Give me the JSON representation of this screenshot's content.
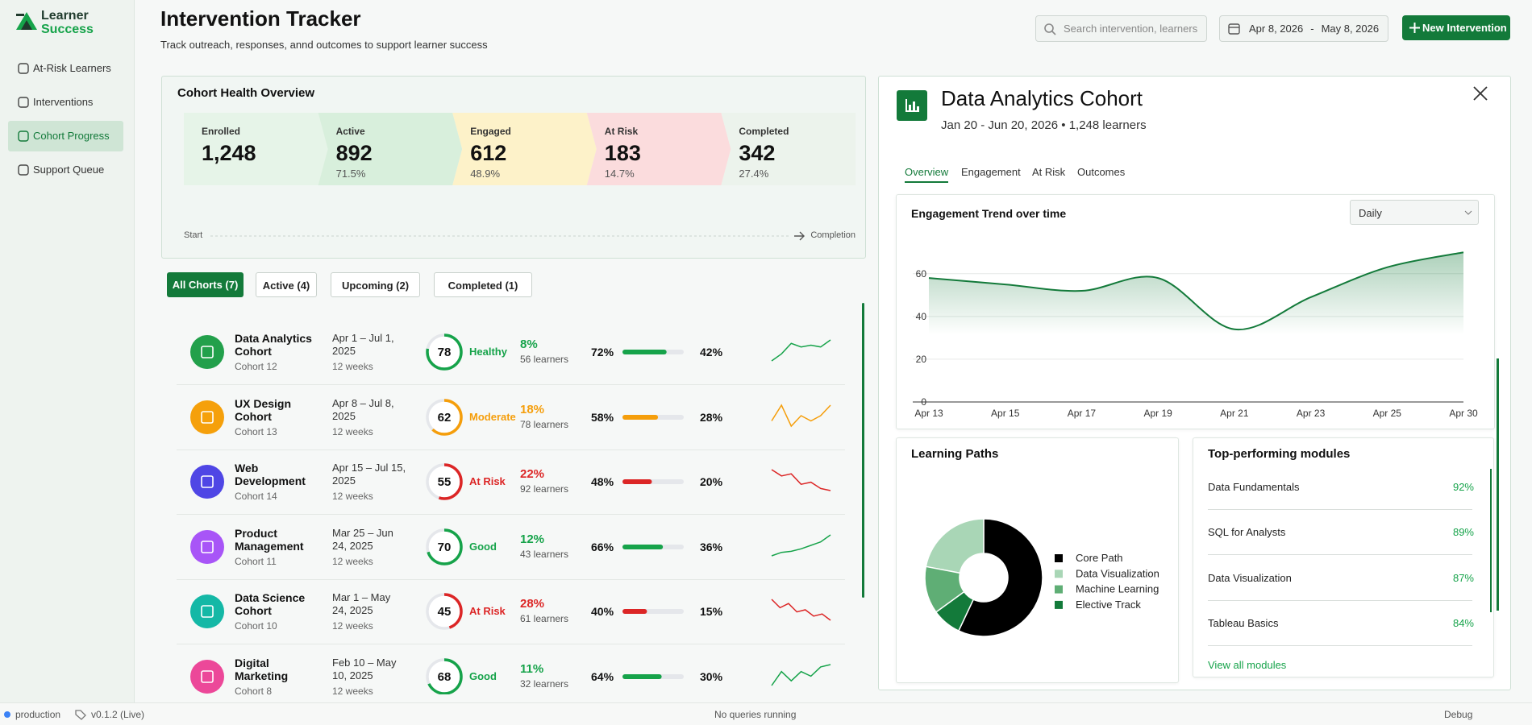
{
  "brand": {
    "line1": "Learner",
    "line2": "Success"
  },
  "nav": [
    {
      "label": "At-Risk Learners",
      "active": false
    },
    {
      "label": "Interventions",
      "active": false
    },
    {
      "label": "Cohort Progress",
      "active": true
    },
    {
      "label": "Support Queue",
      "active": false
    }
  ],
  "header": {
    "title": "Intervention Tracker",
    "subtitle": "Track outreach, responses, annd outcomes to support learner success",
    "search_placeholder": "Search intervention, learners",
    "date_start": "Apr 8, 2026",
    "date_separator": "-",
    "date_end": "May 8, 2026",
    "button": "New Intervention"
  },
  "overview": {
    "title": "Cohort Health Overview",
    "stages": [
      {
        "label": "Enrolled",
        "value": "1,248",
        "note": "",
        "color": "#e6f4e8"
      },
      {
        "label": "Active",
        "value": "892",
        "note": "71.5%",
        "color": "#d8efdc"
      },
      {
        "label": "Engaged",
        "value": "612",
        "note": "48.9%",
        "color": "#fdf2c9"
      },
      {
        "label": "At Risk",
        "value": "183",
        "note": "14.7%",
        "color": "#fbdcdd"
      },
      {
        "label": "Completed",
        "value": "342",
        "note": "27.4%",
        "color": "#ecf3ec"
      }
    ],
    "start": "Start",
    "end": "Completion"
  },
  "filters": [
    {
      "label": "All Chorts (7)",
      "active": true
    },
    {
      "label": "Active (4)",
      "active": false
    },
    {
      "label": "Upcoming (2)",
      "active": false
    },
    {
      "label": "Completed (1)",
      "active": false
    }
  ],
  "cohorts": [
    {
      "name": "Data Analytics Cohort",
      "id": "Cohort 12",
      "dates": "Apr 1 – Jul 1, 2025",
      "duration": "12 weeks",
      "icon_color": "#22a04b",
      "score": 78,
      "status": "Healthy",
      "status_color": "#16a34a",
      "change": "8%",
      "learners": "56 learners",
      "progress": 72,
      "progress_label": "72%",
      "completion": "42%",
      "trend": [
        2,
        4,
        7,
        6,
        6.5,
        6,
        8
      ]
    },
    {
      "name": "UX Design Cohort",
      "id": "Cohort 13",
      "dates": "Apr 8 – Jul 8, 2025",
      "duration": "12 weeks",
      "icon_color": "#f5a00b",
      "score": 62,
      "status": "Moderate",
      "status_color": "#f59e0b",
      "change": "18%",
      "learners": "78 learners",
      "progress": 58,
      "progress_label": "58%",
      "completion": "28%",
      "trend": [
        4,
        7,
        3,
        5,
        4,
        5,
        7
      ]
    },
    {
      "name": "Web Development",
      "id": "Cohort 14",
      "dates": "Apr 15 – Jul 15, 2025",
      "duration": "12 weeks",
      "icon_color": "#4f46e5",
      "score": 55,
      "status": "At Risk",
      "status_color": "#dc2626",
      "change": "22%",
      "learners": "92 learners",
      "progress": 48,
      "progress_label": "48%",
      "completion": "20%",
      "trend": [
        8,
        6.5,
        7,
        4.5,
        5,
        3.5,
        3
      ]
    },
    {
      "name": "Product Management",
      "id": "Cohort 11",
      "dates": "Mar 25 – Jun 24, 2025",
      "duration": "12 weeks",
      "icon_color": "#a855f7",
      "score": 70,
      "status": "Good",
      "status_color": "#16a34a",
      "change": "12%",
      "learners": "43 learners",
      "progress": 66,
      "progress_label": "66%",
      "completion": "36%",
      "trend": [
        3,
        4,
        4.3,
        5,
        6,
        7,
        9
      ]
    },
    {
      "name": "Data Science Cohort",
      "id": "Cohort 10",
      "dates": "Mar 1 – May 24, 2025",
      "duration": "12 weeks",
      "icon_color": "#14b8a6",
      "score": 45,
      "status": "At Risk",
      "status_color": "#dc2626",
      "change": "28%",
      "learners": "61 learners",
      "progress": 40,
      "progress_label": "40%",
      "completion": "15%",
      "trend": [
        8,
        6,
        7,
        5,
        5.5,
        4,
        4.5,
        3
      ]
    },
    {
      "name": "Digital Marketing",
      "id": "Cohort 8",
      "dates": "Feb 10 – May 10, 2025",
      "duration": "12 weeks",
      "icon_color": "#ec4899",
      "score": 68,
      "status": "Good",
      "status_color": "#16a34a",
      "change": "11%",
      "learners": "32 learners",
      "progress": 64,
      "progress_label": "64%",
      "completion": "30%",
      "trend": [
        3,
        6,
        4,
        6,
        5,
        7,
        7.5
      ]
    }
  ],
  "detail": {
    "title": "Data Analytics Cohort",
    "meta": "Jan 20 - Jun 20, 2026 • 1,248 learners",
    "tabs": [
      {
        "label": "Overview",
        "active": true
      },
      {
        "label": "Engagement",
        "active": false
      },
      {
        "label": "At Risk",
        "active": false
      },
      {
        "label": "Outcomes",
        "active": false
      }
    ],
    "modules_title": "Top-performing modules",
    "modules": [
      {
        "name": "Data Fundamentals",
        "score": "92%"
      },
      {
        "name": "SQL for Analysts",
        "score": "89%"
      },
      {
        "name": "Data Visualization",
        "score": "87%"
      },
      {
        "name": "Tableau Basics",
        "score": "84%"
      }
    ],
    "modules_link": "View all modules"
  },
  "chart_data": [
    {
      "type": "line",
      "title": "Engagement Trend over time",
      "period": "Daily",
      "categories": [
        "Apr 13",
        "Apr 15",
        "Apr 17",
        "Apr 19",
        "Apr 21",
        "Apr 23",
        "Apr 25",
        "Apr 30"
      ],
      "series": [
        {
          "color": "#137a3a",
          "values": [
            58,
            55,
            52,
            58,
            34,
            49,
            63,
            70
          ]
        }
      ],
      "ylim": [
        0,
        75
      ],
      "yticks": [
        0,
        20,
        40,
        60
      ],
      "grid": true,
      "smooth": true,
      "area": true
    },
    {
      "type": "pie",
      "title": "Learning Paths",
      "categories": [
        "Core Path",
        "Data Visualization",
        "Machine Learning",
        "Elective Track"
      ],
      "values": [
        57,
        22,
        13,
        8
      ],
      "colors": [
        "#000000",
        "#a9d6b6",
        "#5fae75",
        "#137a3a"
      ],
      "donut": true
    }
  ],
  "footer": {
    "env": "production",
    "version": "v0.1.2 (Live)",
    "status": "No queries running",
    "debug": "Debug"
  }
}
